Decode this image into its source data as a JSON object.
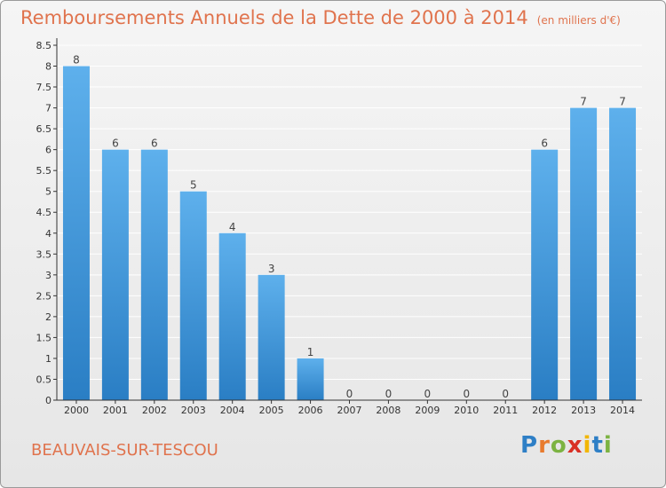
{
  "header": {
    "title": "Remboursements Annuels de la Dette de 2000 à 2014",
    "unit_note": "(en milliers d'€)"
  },
  "footer": {
    "commune": "BEAUVAIS-SUR-TESCOU",
    "logo_text": [
      "P",
      "r",
      "o",
      "x",
      "i",
      "t",
      "i"
    ],
    "logo_colors": [
      "#2e7fc6",
      "#e87b2e",
      "#7cb342",
      "#d93025",
      "#f2b600",
      "#2e7fc6",
      "#7cb342"
    ]
  },
  "colors": {
    "bar_top": "#5eb0ec",
    "bar_bottom": "#2a7ec4",
    "grid": "#ffffff",
    "axis": "#333333"
  },
  "chart_data": {
    "type": "bar",
    "categories": [
      "2000",
      "2001",
      "2002",
      "2003",
      "2004",
      "2005",
      "2006",
      "2007",
      "2008",
      "2009",
      "2010",
      "2011",
      "2012",
      "2013",
      "2014"
    ],
    "values": [
      8,
      6,
      6,
      5,
      4,
      3,
      1,
      0,
      0,
      0,
      0,
      0,
      6,
      7,
      7
    ],
    "data_labels": [
      "8",
      "6",
      "6",
      "5",
      "4",
      "3",
      "1",
      "0",
      "0",
      "0",
      "0",
      "0",
      "6",
      "7",
      "7"
    ],
    "y_ticks": [
      "0",
      "0.5",
      "1",
      "1.5",
      "2",
      "2.5",
      "3",
      "3.5",
      "4",
      "4.5",
      "5",
      "5.5",
      "6",
      "6.5",
      "7",
      "7.5",
      "8",
      "8.5"
    ],
    "ylim": [
      0,
      8.5
    ],
    "grid": true,
    "legend": false
  }
}
